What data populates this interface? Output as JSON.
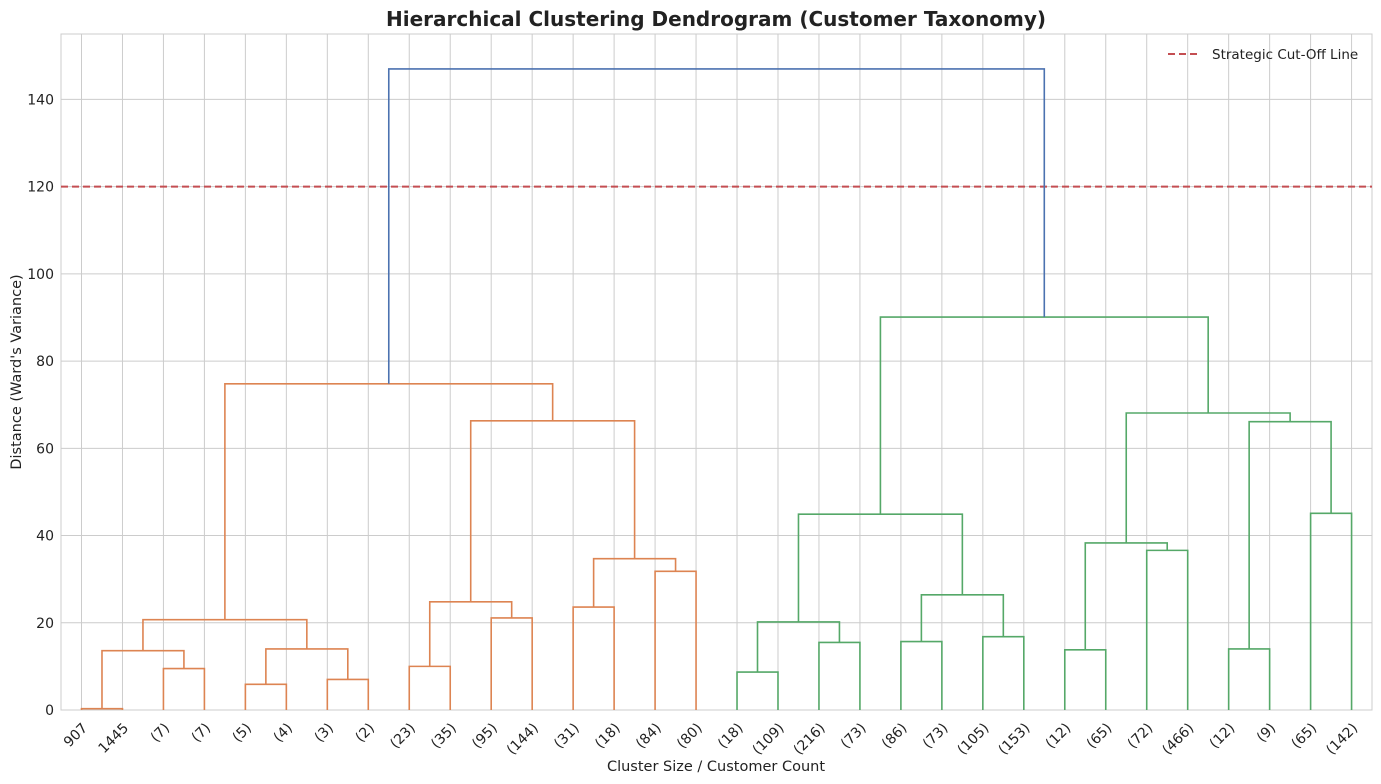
{
  "chart_data": {
    "type": "dendrogram",
    "title": "Hierarchical Clustering Dendrogram (Customer Taxonomy)",
    "xlabel": "Cluster Size / Customer Count",
    "ylabel": "Distance (Ward's Variance)",
    "ylim": [
      0,
      155
    ],
    "yticks": [
      0,
      20,
      40,
      60,
      80,
      100,
      120,
      140
    ],
    "grid": true,
    "legend_position": "top-right",
    "colors": {
      "orange": "#dd8452",
      "green": "#55a868",
      "blue": "#4c72b0",
      "cutoff": "#c44e52"
    },
    "leaf_labels": [
      "907",
      "1445",
      "(7)",
      "(7)",
      "(5)",
      "(4)",
      "(3)",
      "(2)",
      "(23)",
      "(35)",
      "(95)",
      "(144)",
      "(31)",
      "(18)",
      "(84)",
      "(80)",
      "(18)",
      "(109)",
      "(216)",
      "(73)",
      "(86)",
      "(73)",
      "(105)",
      "(153)",
      "(12)",
      "(65)",
      "(72)",
      "(466)",
      "(12)",
      "(9)",
      "(65)",
      "(142)"
    ],
    "cutoff": {
      "label": "Strategic Cut-Off Line",
      "value": 120
    },
    "merges": [
      {
        "left": "L0",
        "right": "L1",
        "height": 0.3,
        "color": "orange"
      },
      {
        "left": "L2",
        "right": "L3",
        "height": 9.5,
        "color": "orange"
      },
      {
        "left": "M0",
        "right": "M1",
        "height": 13.6,
        "color": "orange"
      },
      {
        "left": "L4",
        "right": "L5",
        "height": 5.9,
        "color": "orange"
      },
      {
        "left": "L6",
        "right": "L7",
        "height": 7.0,
        "color": "orange"
      },
      {
        "left": "M3",
        "right": "M4",
        "height": 14.0,
        "color": "orange"
      },
      {
        "left": "M2",
        "right": "M5",
        "height": 20.7,
        "color": "orange"
      },
      {
        "left": "L8",
        "right": "L9",
        "height": 10.0,
        "color": "orange"
      },
      {
        "left": "L10",
        "right": "L11",
        "height": 21.1,
        "color": "orange"
      },
      {
        "left": "M7",
        "right": "M8",
        "height": 24.8,
        "color": "orange"
      },
      {
        "left": "L12",
        "right": "L13",
        "height": 23.6,
        "color": "orange"
      },
      {
        "left": "L14",
        "right": "L15",
        "height": 31.8,
        "color": "orange"
      },
      {
        "left": "M10",
        "right": "M11",
        "height": 34.7,
        "color": "orange"
      },
      {
        "left": "M9",
        "right": "M12",
        "height": 66.3,
        "color": "orange"
      },
      {
        "left": "M6",
        "right": "M13",
        "height": 74.8,
        "color": "orange"
      },
      {
        "left": "L16",
        "right": "L17",
        "height": 8.7,
        "color": "green"
      },
      {
        "left": "L18",
        "right": "L19",
        "height": 15.5,
        "color": "green"
      },
      {
        "left": "M15",
        "right": "M16",
        "height": 20.2,
        "color": "green"
      },
      {
        "left": "L20",
        "right": "L21",
        "height": 15.7,
        "color": "green"
      },
      {
        "left": "L22",
        "right": "L23",
        "height": 16.8,
        "color": "green"
      },
      {
        "left": "M18",
        "right": "M19",
        "height": 26.4,
        "color": "green"
      },
      {
        "left": "M17",
        "right": "M20",
        "height": 44.9,
        "color": "green"
      },
      {
        "left": "L24",
        "right": "L25",
        "height": 13.8,
        "color": "green"
      },
      {
        "left": "L26",
        "right": "L27",
        "height": 36.6,
        "color": "green"
      },
      {
        "left": "M22",
        "right": "M23",
        "height": 38.3,
        "color": "green"
      },
      {
        "left": "L28",
        "right": "L29",
        "height": 14.0,
        "color": "green"
      },
      {
        "left": "L30",
        "right": "L31",
        "height": 45.1,
        "color": "green"
      },
      {
        "left": "M25",
        "right": "M26",
        "height": 66.1,
        "color": "green"
      },
      {
        "left": "M24",
        "right": "M27",
        "height": 68.1,
        "color": "green"
      },
      {
        "left": "M21",
        "right": "M28",
        "height": 90.1,
        "color": "green"
      },
      {
        "left": "M14",
        "right": "M29",
        "height": 147.0,
        "color": "blue"
      }
    ]
  }
}
